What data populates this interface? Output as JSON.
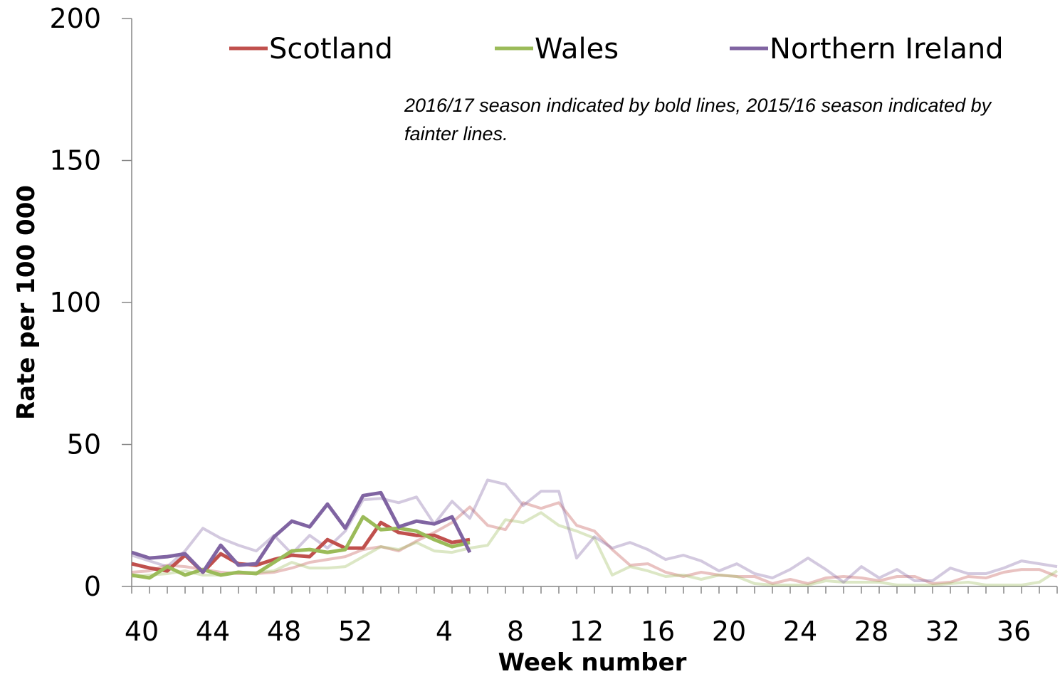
{
  "chart_data": {
    "type": "line",
    "title": "",
    "xlabel": "Week number",
    "ylabel": "Rate per 100 000",
    "ylim": [
      0,
      200
    ],
    "yticks": [
      "0",
      "50",
      "100",
      "150",
      "200"
    ],
    "xticks": [
      "40",
      "44",
      "48",
      "52",
      "4",
      "8",
      "12",
      "16",
      "20",
      "24",
      "28",
      "32",
      "36"
    ],
    "note": "2016/17 season indicated by bold lines, 2015/16 season indicated by fainter lines.",
    "legend_position": "top",
    "grid": false,
    "weeks_2015_16": [
      40,
      41,
      42,
      43,
      44,
      45,
      46,
      47,
      48,
      49,
      50,
      51,
      52,
      53,
      1,
      2,
      3,
      4,
      5,
      6,
      7,
      8,
      9,
      10,
      11,
      12,
      13,
      14,
      15,
      16,
      17,
      18,
      19,
      20,
      21,
      22,
      23,
      24,
      25,
      26,
      27,
      28,
      29,
      30,
      31,
      32,
      33,
      34,
      35,
      36,
      37,
      38,
      39
    ],
    "weeks_2016_17": [
      40,
      41,
      42,
      43,
      44,
      45,
      46,
      47,
      48,
      49,
      50,
      51,
      52,
      1,
      2,
      3,
      4,
      5,
      6,
      7
    ],
    "series": [
      {
        "name": "Scotland",
        "color": "#C0504D",
        "season": "2016/17",
        "values": [
          8,
          6.5,
          5.5,
          11,
          5,
          11.5,
          8,
          7.5,
          9.5,
          11,
          10.5,
          16.5,
          13.5,
          13.5,
          22.5,
          19,
          18,
          18,
          15.5,
          16.5
        ]
      },
      {
        "name": "Wales",
        "color": "#9BBB59",
        "season": "2016/17",
        "values": [
          4,
          3,
          7,
          4,
          6,
          4,
          5,
          4.5,
          8.5,
          12.5,
          13,
          12,
          13,
          24.5,
          20,
          20.5,
          19.5,
          16.5,
          14,
          15.5
        ]
      },
      {
        "name": "Northern Ireland",
        "color": "#8064A2",
        "season": "2016/17",
        "values": [
          12,
          10,
          10.5,
          11.5,
          5,
          14.5,
          7.5,
          8,
          17.5,
          23,
          21,
          29,
          20.5,
          32,
          33,
          21,
          23,
          22,
          24.5,
          12
        ]
      },
      {
        "name": "Scotland",
        "color": "#C0504D",
        "season": "2015/16",
        "values": [
          5,
          5.5,
          7.5,
          7,
          6,
          5,
          4.5,
          4.5,
          5,
          6.5,
          8.5,
          9.5,
          10.5,
          13,
          14,
          12.5,
          16,
          19,
          22.5,
          28,
          21.5,
          20,
          29.5,
          27.5,
          29.5,
          21.5,
          19.5,
          13,
          7.5,
          8,
          5,
          3.5,
          5,
          4,
          3.5,
          3.5,
          1,
          2.5,
          1,
          3,
          3.5,
          3,
          2,
          3.5,
          3.5,
          1,
          1.5,
          3.5,
          3,
          5,
          6,
          6,
          3.5
        ]
      },
      {
        "name": "Wales",
        "color": "#9BBB59",
        "season": "2015/16",
        "values": [
          3.5,
          4,
          4.5,
          5.5,
          4,
          4,
          5,
          5,
          5.5,
          8.5,
          6.5,
          6.5,
          7,
          10.5,
          14,
          13,
          15.5,
          12.5,
          12,
          13.5,
          14.5,
          23.5,
          22.5,
          26,
          21.5,
          19.5,
          17,
          4,
          7,
          5.5,
          3.5,
          4,
          2.5,
          4,
          3.5,
          1,
          0.5,
          0.5,
          0.5,
          2,
          1.5,
          1.5,
          1.5,
          0.5,
          0.5,
          0.5,
          1,
          1.5,
          0.5,
          0.5,
          0.5,
          1.5,
          5.5
        ]
      },
      {
        "name": "Northern Ireland",
        "color": "#8064A2",
        "season": "2015/16",
        "values": [
          11,
          9,
          7,
          12.5,
          20.5,
          17,
          14.5,
          12.5,
          18,
          11.5,
          18,
          13.5,
          19.5,
          30.5,
          31,
          29.5,
          31.5,
          22,
          30,
          24,
          37.5,
          36,
          28.5,
          33.5,
          33.5,
          10,
          17.5,
          13.5,
          15.5,
          13,
          9.5,
          11,
          9,
          5.5,
          8,
          4.5,
          3,
          6,
          10,
          6,
          1.5,
          7,
          3,
          6,
          2,
          2,
          6.5,
          4.5,
          4.5,
          6.5,
          9,
          8,
          7
        ]
      }
    ]
  }
}
